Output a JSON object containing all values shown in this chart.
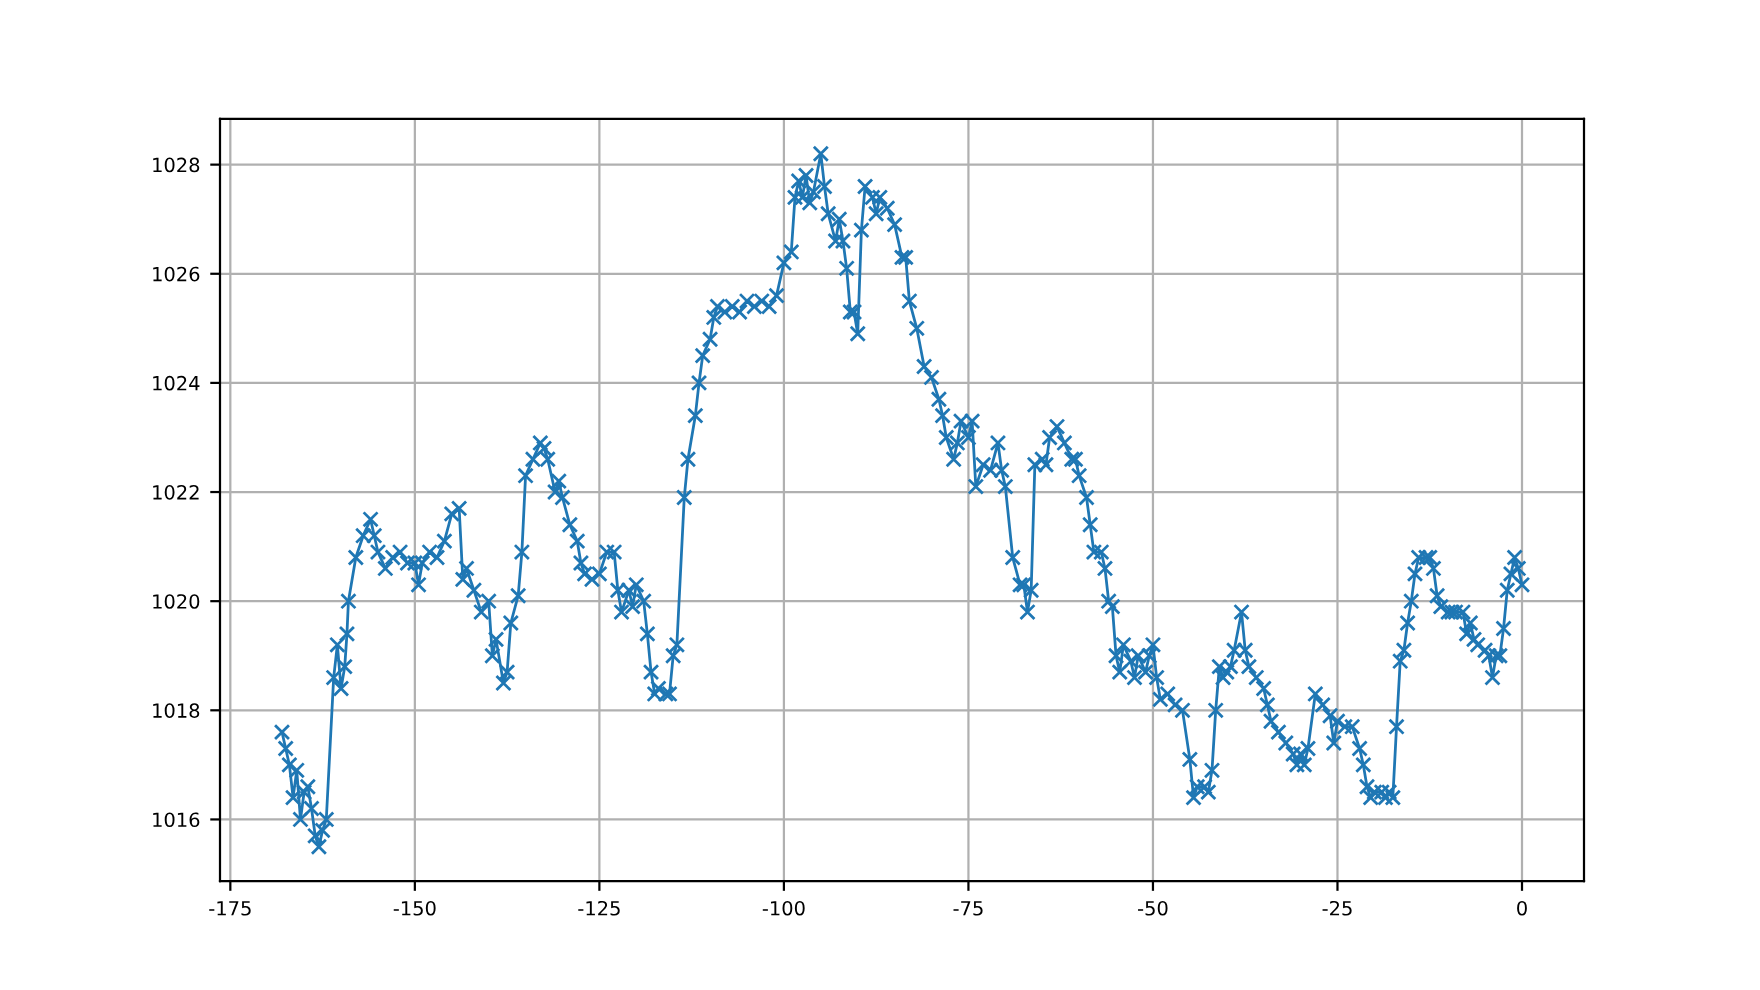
{
  "chart_data": {
    "type": "line",
    "x": [
      -168,
      -167.5,
      -167,
      -166.5,
      -166,
      -165.5,
      -165,
      -164.5,
      -164,
      -163.5,
      -163,
      -162.5,
      -162,
      -161,
      -160.5,
      -160,
      -159.5,
      -159.2,
      -159,
      -158,
      -157,
      -156,
      -155.5,
      -155,
      -154,
      -153,
      -152,
      -151,
      -150,
      -149.5,
      -149,
      -148,
      -147,
      -146,
      -145,
      -144,
      -143.5,
      -143,
      -142,
      -141,
      -140,
      -139.5,
      -139,
      -138,
      -137.5,
      -137,
      -136,
      -135.5,
      -135,
      -134,
      -133,
      -132.5,
      -132,
      -131,
      -130.5,
      -130,
      -129,
      -128,
      -127.5,
      -127,
      -126,
      -125,
      -124,
      -123,
      -122.5,
      -122,
      -121,
      -120.5,
      -120,
      -119,
      -118.5,
      -118,
      -117.5,
      -117,
      -116,
      -115.5,
      -115,
      -114.5,
      -113.5,
      -113,
      -112,
      -111.5,
      -111,
      -110,
      -109.5,
      -109,
      -108,
      -107,
      -106,
      -105,
      -104,
      -103,
      -102,
      -101,
      -100,
      -99,
      -98.5,
      -98,
      -97.5,
      -97,
      -96.5,
      -96,
      -95,
      -94.5,
      -94,
      -93,
      -92.5,
      -92,
      -91.5,
      -91,
      -90.5,
      -90,
      -89.5,
      -89,
      -88,
      -87.5,
      -87,
      -86,
      -85,
      -84,
      -83.5,
      -83,
      -82,
      -81,
      -80,
      -79,
      -78.5,
      -78,
      -77,
      -76.5,
      -76,
      -75,
      -74.5,
      -74,
      -73,
      -72,
      -71,
      -70.5,
      -70,
      -69,
      -68,
      -67.5,
      -67,
      -66.5,
      -66,
      -65,
      -64.5,
      -64,
      -63,
      -62,
      -61,
      -60.5,
      -60,
      -59,
      -58.5,
      -58,
      -57,
      -56.5,
      -56,
      -55.5,
      -55,
      -54.5,
      -54,
      -53,
      -52.5,
      -52,
      -51,
      -50.5,
      -50,
      -49.5,
      -49,
      -48,
      -47,
      -46,
      -45,
      -44.5,
      -44,
      -43,
      -42.5,
      -42,
      -41.5,
      -41,
      -40.5,
      -40,
      -39.5,
      -39,
      -38,
      -37.5,
      -37,
      -36,
      -35,
      -34.5,
      -34,
      -33,
      -32,
      -31,
      -30.5,
      -30,
      -29.5,
      -29,
      -28,
      -27,
      -26,
      -25.5,
      -25,
      -24,
      -23,
      -22,
      -21.5,
      -21,
      -20.5,
      -20,
      -19,
      -18.5,
      -18,
      -17.5,
      -17,
      -16.5,
      -16,
      -15.5,
      -15,
      -14.5,
      -14,
      -13,
      -12.5,
      -12,
      -11.5,
      -11,
      -10,
      -9.5,
      -9,
      -8,
      -7.5,
      -7,
      -6.5,
      -6,
      -5,
      -4.5,
      -4,
      -3.5,
      -3,
      -2.5,
      -2,
      -1.5,
      -1,
      -0.5,
      0
    ],
    "values": [
      1017.6,
      1017.3,
      1017.0,
      1016.4,
      1016.9,
      1016.0,
      1016.5,
      1016.6,
      1016.2,
      1015.7,
      1015.5,
      1015.8,
      1016.0,
      1018.6,
      1019.2,
      1018.4,
      1018.8,
      1019.4,
      1020.0,
      1020.8,
      1021.2,
      1021.5,
      1021.2,
      1020.9,
      1020.6,
      1020.8,
      1020.9,
      1020.7,
      1020.7,
      1020.3,
      1020.7,
      1020.9,
      1020.8,
      1021.1,
      1021.6,
      1021.7,
      1020.4,
      1020.6,
      1020.2,
      1019.8,
      1020.0,
      1019.0,
      1019.3,
      1018.5,
      1018.7,
      1019.6,
      1020.1,
      1020.9,
      1022.3,
      1022.6,
      1022.9,
      1022.8,
      1022.6,
      1022.0,
      1022.2,
      1021.9,
      1021.4,
      1021.1,
      1020.7,
      1020.5,
      1020.4,
      1020.5,
      1020.9,
      1020.9,
      1020.2,
      1019.8,
      1020.2,
      1019.9,
      1020.3,
      1020.0,
      1019.4,
      1018.7,
      1018.3,
      1018.4,
      1018.3,
      1018.3,
      1019.0,
      1019.2,
      1021.9,
      1022.6,
      1023.4,
      1024.0,
      1024.5,
      1024.8,
      1025.2,
      1025.4,
      1025.3,
      1025.4,
      1025.3,
      1025.5,
      1025.4,
      1025.5,
      1025.4,
      1025.6,
      1026.2,
      1026.4,
      1027.4,
      1027.7,
      1027.4,
      1027.8,
      1027.3,
      1027.5,
      1028.2,
      1027.6,
      1027.1,
      1026.6,
      1027.0,
      1026.6,
      1026.1,
      1025.3,
      1025.3,
      1024.9,
      1026.8,
      1027.6,
      1027.4,
      1027.1,
      1027.4,
      1027.2,
      1026.9,
      1026.3,
      1026.3,
      1025.5,
      1025.0,
      1024.3,
      1024.1,
      1023.7,
      1023.4,
      1023.0,
      1022.6,
      1022.9,
      1023.3,
      1023.0,
      1023.3,
      1022.1,
      1022.5,
      1022.4,
      1022.9,
      1022.4,
      1022.1,
      1020.8,
      1020.3,
      1020.3,
      1019.8,
      1020.2,
      1022.5,
      1022.6,
      1022.5,
      1023.0,
      1023.2,
      1022.9,
      1022.6,
      1022.6,
      1022.3,
      1021.9,
      1021.4,
      1020.9,
      1020.9,
      1020.6,
      1020.0,
      1019.9,
      1019.0,
      1018.7,
      1019.2,
      1018.9,
      1018.6,
      1019.0,
      1018.7,
      1019.0,
      1019.2,
      1018.6,
      1018.2,
      1018.3,
      1018.1,
      1018.0,
      1017.1,
      1016.4,
      1016.6,
      1016.6,
      1016.5,
      1016.9,
      1018.0,
      1018.8,
      1018.6,
      1018.7,
      1018.8,
      1019.1,
      1019.8,
      1019.1,
      1018.8,
      1018.6,
      1018.4,
      1018.1,
      1017.8,
      1017.6,
      1017.4,
      1017.2,
      1017.0,
      1017.2,
      1017.0,
      1017.3,
      1018.3,
      1018.1,
      1017.9,
      1017.4,
      1017.8,
      1017.7,
      1017.7,
      1017.3,
      1017.0,
      1016.6,
      1016.4,
      1016.5,
      1016.5,
      1016.4,
      1016.5,
      1016.4,
      1017.7,
      1018.9,
      1019.1,
      1019.6,
      1020.0,
      1020.5,
      1020.8,
      1020.8,
      1020.8,
      1020.6,
      1020.1,
      1019.9,
      1019.8,
      1019.8,
      1019.8,
      1019.8,
      1019.4,
      1019.6,
      1019.3,
      1019.2,
      1019.1,
      1019.0,
      1018.6,
      1019.0,
      1019.0,
      1019.5,
      1020.2,
      1020.5,
      1020.8,
      1020.6,
      1020.3
    ],
    "color": "#1f77b4",
    "marker": "cross",
    "line_style": "solid",
    "grid": true,
    "xlim": [
      -176.4,
      8.4
    ],
    "xticks": [
      -175,
      -150,
      -125,
      -100,
      -75,
      -50,
      -25,
      0
    ],
    "ylim": [
      1014.87,
      1028.84
    ],
    "yticks": [
      1016,
      1018,
      1020,
      1022,
      1024,
      1026,
      1028
    ]
  }
}
